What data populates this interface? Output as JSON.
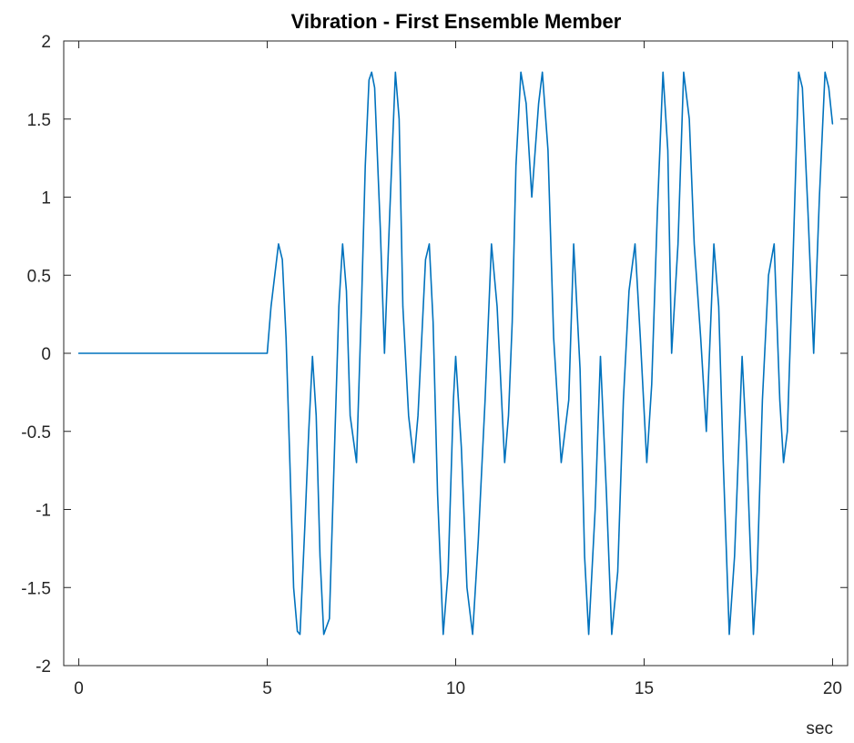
{
  "chart_data": {
    "type": "line",
    "title": "Vibration - First Ensemble Member",
    "xlabel": "sec",
    "ylabel": "",
    "xlim": [
      -0.4,
      20.4
    ],
    "ylim": [
      -2,
      2
    ],
    "grid": false,
    "x_ticks": [
      0,
      5,
      10,
      15,
      20
    ],
    "x_tick_labels": [
      "0",
      "5",
      "10",
      "15",
      "20"
    ],
    "y_ticks": [
      2,
      1.5,
      1,
      0.5,
      0,
      -0.5,
      -1,
      -1.5,
      -2
    ],
    "y_tick_labels": [
      "2",
      "1.5",
      "1",
      "0.5",
      "0",
      "-0.5",
      "-1",
      "-1.5",
      "-2"
    ],
    "series": [
      {
        "color": "#0072BD",
        "x": [
          0,
          5.0,
          5.1,
          5.3,
          5.4,
          5.5,
          5.6,
          5.7,
          5.8,
          5.87,
          6.0,
          6.1,
          6.2,
          6.3,
          6.4,
          6.5,
          6.65,
          6.8,
          6.9,
          7.0,
          7.1,
          7.2,
          7.37,
          7.5,
          7.6,
          7.7,
          7.77,
          7.85,
          8.0,
          8.11,
          8.25,
          8.4,
          8.5,
          8.6,
          8.75,
          8.89,
          9.0,
          9.2,
          9.3,
          9.4,
          9.52,
          9.67,
          9.8,
          9.94,
          10.0,
          10.15,
          10.3,
          10.45,
          10.6,
          10.78,
          10.95,
          11.1,
          11.3,
          11.4,
          11.5,
          11.6,
          11.73,
          11.87,
          12.02,
          12.2,
          12.3,
          12.45,
          12.6,
          12.8,
          13.0,
          13.13,
          13.3,
          13.42,
          13.53,
          13.7,
          13.84,
          14.0,
          14.14,
          14.3,
          14.45,
          14.6,
          14.76,
          14.9,
          15.07,
          15.2,
          15.35,
          15.5,
          15.63,
          15.73,
          15.9,
          16.05,
          16.2,
          16.33,
          16.5,
          16.65,
          16.85,
          16.98,
          17.1,
          17.26,
          17.4,
          17.6,
          17.72,
          17.9,
          18.0,
          18.14,
          18.3,
          18.45,
          18.6,
          18.7,
          18.8,
          18.95,
          19.1,
          19.2,
          19.35,
          19.5,
          19.65,
          19.8,
          19.9,
          20.0
        ],
        "y": [
          0,
          0,
          0.3,
          0.7,
          0.6,
          0.1,
          -0.7,
          -1.5,
          -1.78,
          -1.8,
          -1.1,
          -0.5,
          -0.02,
          -0.4,
          -1.3,
          -1.8,
          -1.7,
          -0.5,
          0.3,
          0.7,
          0.4,
          -0.4,
          -0.7,
          0.3,
          1.2,
          1.75,
          1.8,
          1.7,
          0.8,
          0.0,
          0.9,
          1.8,
          1.5,
          0.3,
          -0.4,
          -0.7,
          -0.4,
          0.6,
          0.7,
          0.2,
          -0.9,
          -1.8,
          -1.4,
          -0.3,
          -0.02,
          -0.6,
          -1.5,
          -1.8,
          -1.2,
          -0.3,
          0.7,
          0.3,
          -0.7,
          -0.4,
          0.2,
          1.2,
          1.8,
          1.6,
          1.0,
          1.6,
          1.8,
          1.3,
          0.1,
          -0.7,
          -0.3,
          0.7,
          -0.1,
          -1.3,
          -1.8,
          -1.0,
          -0.02,
          -0.9,
          -1.8,
          -1.4,
          -0.3,
          0.4,
          0.7,
          0.1,
          -0.7,
          -0.2,
          0.9,
          1.8,
          1.3,
          0.0,
          0.7,
          1.8,
          1.5,
          0.7,
          0.1,
          -0.5,
          0.7,
          0.3,
          -0.7,
          -1.8,
          -1.3,
          -0.02,
          -0.6,
          -1.8,
          -1.4,
          -0.3,
          0.5,
          0.7,
          -0.3,
          -0.7,
          -0.5,
          0.6,
          1.8,
          1.7,
          0.9,
          0.0,
          1.0,
          1.8,
          1.7,
          1.47
        ]
      }
    ]
  }
}
